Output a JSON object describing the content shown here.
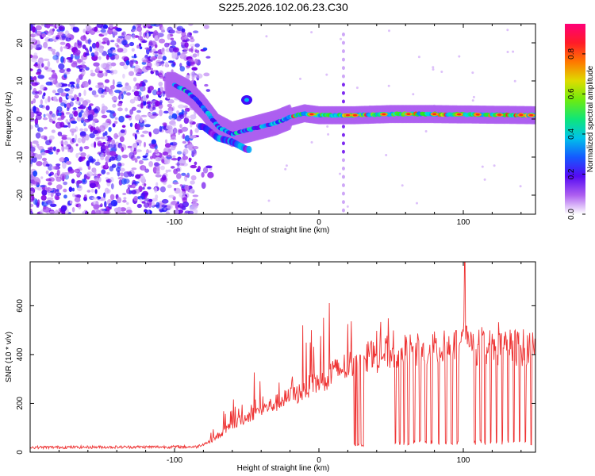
{
  "title": "S225.2026.102.06.23.C30",
  "chart_data": [
    {
      "type": "heatmap",
      "xlabel": "Height of straight line (km)",
      "ylabel": "Frequency (Hz)",
      "xlim": [
        -200,
        150
      ],
      "ylim": [
        -25,
        25
      ],
      "xticks": [
        -100,
        0,
        100
      ],
      "yticks": [
        -20,
        -10,
        0,
        10,
        20
      ],
      "colorbar": {
        "label": "Normalized spectral amplitude",
        "range": [
          0,
          0.95
        ],
        "ticks": [
          0.0,
          0.2,
          0.4,
          0.6,
          0.8
        ]
      },
      "features": {
        "noise_region_x": [
          -200,
          -85
        ],
        "main_track": [
          {
            "x": -100,
            "f": 9
          },
          {
            "x": -90,
            "f": 7
          },
          {
            "x": -80,
            "f": 3
          },
          {
            "x": -70,
            "f": -2
          },
          {
            "x": -60,
            "f": -4
          },
          {
            "x": -50,
            "f": -3
          },
          {
            "x": -40,
            "f": -2
          },
          {
            "x": -30,
            "f": -1
          },
          {
            "x": -20,
            "f": 0.5
          },
          {
            "x": -10,
            "f": 1.5
          },
          {
            "x": 0,
            "f": 1
          },
          {
            "x": 25,
            "f": 1
          },
          {
            "x": 50,
            "f": 1.3
          },
          {
            "x": 75,
            "f": 1.3
          },
          {
            "x": 100,
            "f": 1.2
          },
          {
            "x": 150,
            "f": 1
          }
        ],
        "branch_down": [
          {
            "x": -80,
            "f": -2
          },
          {
            "x": -70,
            "f": -5
          },
          {
            "x": -60,
            "f": -6
          },
          {
            "x": -50,
            "f": -8
          }
        ],
        "blob": {
          "x": -50,
          "f": 5
        },
        "vertical_stripe_x": 17
      }
    },
    {
      "type": "line",
      "xlabel": "Height of straight line (km)",
      "ylabel": "SNR (10 * v/v)",
      "xlim": [
        -200,
        150
      ],
      "ylim": [
        0,
        780
      ],
      "xticks": [
        -100,
        0,
        100
      ],
      "yticks": [
        0,
        200,
        400,
        600
      ],
      "color": "#ee3333",
      "anchors": [
        {
          "x": -200,
          "y": 20
        },
        {
          "x": -85,
          "y": 22
        },
        {
          "x": -75,
          "y": 45
        },
        {
          "x": -60,
          "y": 110
        },
        {
          "x": -45,
          "y": 160
        },
        {
          "x": -30,
          "y": 200
        },
        {
          "x": -15,
          "y": 240
        },
        {
          "x": 0,
          "y": 290
        },
        {
          "x": 15,
          "y": 340
        },
        {
          "x": 30,
          "y": 380
        },
        {
          "x": 50,
          "y": 410
        },
        {
          "x": 80,
          "y": 420
        },
        {
          "x": 100,
          "y": 430
        },
        {
          "x": 150,
          "y": 430
        }
      ],
      "peak": {
        "x": 101,
        "y": 780
      },
      "gap": {
        "x": [
          24,
          31
        ],
        "y": 25
      },
      "dropouts_x": [
        53,
        56,
        59,
        62,
        66,
        70,
        74,
        78,
        83,
        88,
        92,
        96,
        104,
        108,
        112,
        115,
        119,
        123,
        127,
        131,
        135,
        139,
        143,
        147
      ]
    }
  ]
}
